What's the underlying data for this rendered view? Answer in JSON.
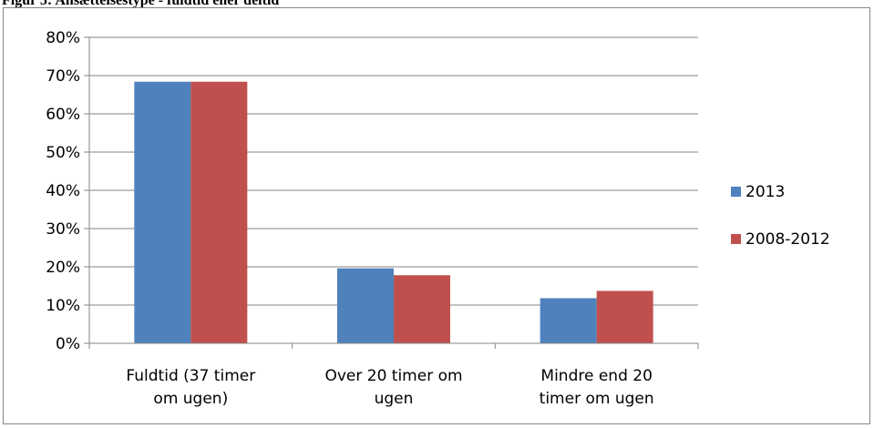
{
  "figure_title": "Figur 5: Ansættelsestype - fuldtid eller deltid",
  "chart_data": {
    "type": "bar",
    "title": "",
    "xlabel": "",
    "ylabel": "",
    "ylim": [
      0,
      0.8
    ],
    "y_ticks": [
      "0%",
      "10%",
      "20%",
      "30%",
      "40%",
      "50%",
      "60%",
      "70%",
      "80%"
    ],
    "categories": [
      [
        "Fuldtid (37 timer",
        "om ugen)"
      ],
      [
        "Over 20 timer om",
        "ugen"
      ],
      [
        "Mindre end 20",
        "timer om ugen"
      ]
    ],
    "series": [
      {
        "name": "2013",
        "color": "#4f81bd",
        "values": [
          0.684,
          0.196,
          0.118
        ]
      },
      {
        "name": "2008-2012",
        "color": "#c0504d",
        "values": [
          0.684,
          0.178,
          0.137
        ]
      }
    ],
    "grid": true,
    "legend_position": "right"
  }
}
